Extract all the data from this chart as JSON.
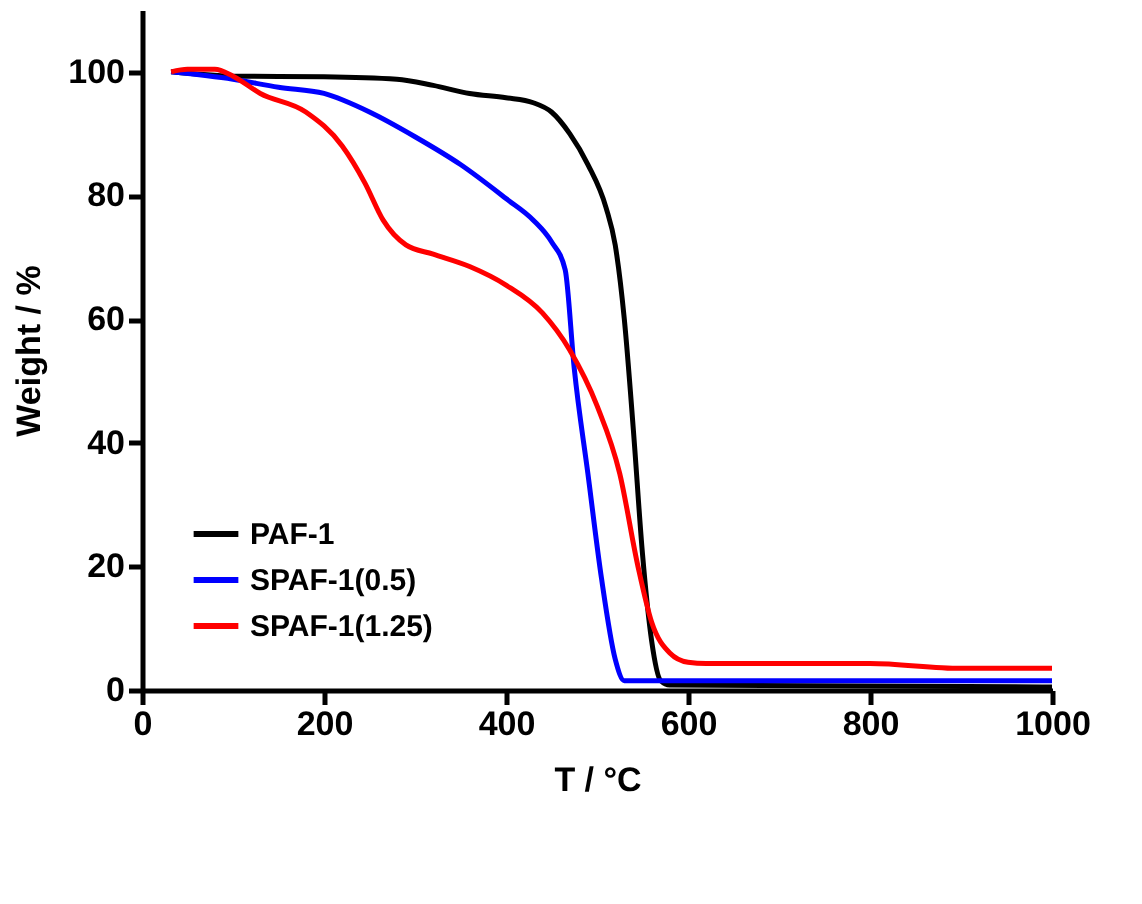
{
  "chart_data": {
    "type": "line",
    "xlabel": "T / °C",
    "ylabel": "Weight / %",
    "xlim": [
      0,
      1000
    ],
    "xticks": [
      0,
      200,
      400,
      600,
      800,
      1000
    ],
    "ylim": [
      0,
      110
    ],
    "yticks": [
      0,
      20,
      40,
      60,
      80,
      100
    ],
    "grid": false,
    "legend": "bottom left",
    "marker": "none",
    "line_style": "solid",
    "series": [
      {
        "name": "PAF-1",
        "color": "#000000",
        "x": [
          32,
          100,
          200,
          280,
          320,
          360,
          400,
          430,
          450,
          470,
          490,
          510,
          520,
          530,
          540,
          550,
          560,
          570,
          580,
          1000
        ],
        "values": [
          100,
          99.3,
          99.2,
          98.8,
          97.8,
          96.5,
          95.8,
          95,
          93.5,
          90,
          85,
          78,
          72,
          60,
          42,
          22,
          8,
          1.5,
          0.8,
          0.5
        ]
      },
      {
        "name": "SPAF-1(0.5)",
        "color": "#0000ff",
        "x": [
          32,
          100,
          150,
          200,
          250,
          300,
          350,
          400,
          430,
          450,
          465,
          475,
          490,
          505,
          520,
          530,
          1000
        ],
        "values": [
          100,
          98.8,
          97.5,
          96.5,
          93.5,
          89.5,
          85,
          79.5,
          76,
          72.5,
          68,
          52,
          35,
          18,
          5,
          1.5,
          1.5
        ]
      },
      {
        "name": "SPAF-1(1.25)",
        "color": "#ff0000",
        "x": [
          32,
          50,
          80,
          100,
          130,
          180,
          220,
          245,
          265,
          290,
          320,
          360,
          400,
          440,
          470,
          500,
          525,
          545,
          560,
          580,
          600,
          620,
          800,
          900,
          1000
        ],
        "values": [
          100,
          100.4,
          100.4,
          99.3,
          96.5,
          93.5,
          88,
          82,
          76,
          72,
          70.5,
          68.5,
          65.5,
          61,
          55,
          46,
          35,
          20,
          11,
          6,
          4.5,
          4.3,
          4.3,
          3.5,
          3.5
        ]
      }
    ]
  }
}
